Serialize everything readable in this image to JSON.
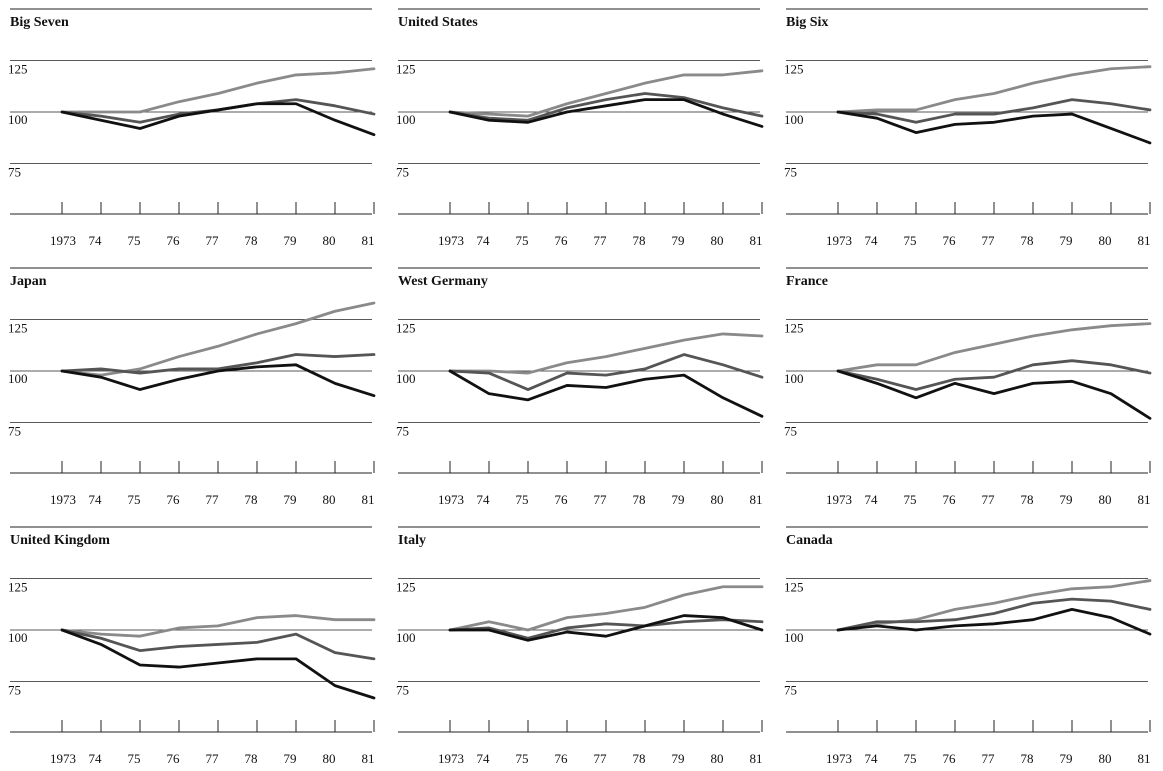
{
  "chart_data": [
    {
      "type": "line",
      "title": "Big Seven",
      "x": [
        "1973",
        "74",
        "75",
        "76",
        "77",
        "78",
        "79",
        "80",
        "81"
      ],
      "y_ticks": [
        "125",
        "100",
        "75"
      ],
      "ylim": [
        50,
        150
      ],
      "series": [
        {
          "color": "#8a8a8a",
          "values": [
            100,
            100,
            100,
            105,
            109,
            114,
            118,
            119,
            121
          ]
        },
        {
          "color": "#555555",
          "values": [
            100,
            98,
            95,
            99,
            101,
            104,
            106,
            103,
            99
          ]
        },
        {
          "color": "#111111",
          "values": [
            100,
            96,
            92,
            98,
            101,
            104,
            104,
            96,
            89
          ]
        }
      ]
    },
    {
      "type": "line",
      "title": "United States",
      "x": [
        "1973",
        "74",
        "75",
        "76",
        "77",
        "78",
        "79",
        "80",
        "81"
      ],
      "y_ticks": [
        "125",
        "100",
        "75"
      ],
      "ylim": [
        50,
        150
      ],
      "series": [
        {
          "color": "#8a8a8a",
          "values": [
            100,
            99,
            98,
            104,
            109,
            114,
            118,
            118,
            120
          ]
        },
        {
          "color": "#555555",
          "values": [
            100,
            97,
            96,
            102,
            106,
            109,
            107,
            102,
            98
          ]
        },
        {
          "color": "#111111",
          "values": [
            100,
            96,
            95,
            100,
            103,
            106,
            106,
            99,
            93
          ]
        }
      ]
    },
    {
      "type": "line",
      "title": "Big Six",
      "x": [
        "1973",
        "74",
        "75",
        "76",
        "77",
        "78",
        "79",
        "80",
        "81"
      ],
      "y_ticks": [
        "125",
        "100",
        "75"
      ],
      "ylim": [
        50,
        150
      ],
      "series": [
        {
          "color": "#8a8a8a",
          "values": [
            100,
            101,
            101,
            106,
            109,
            114,
            118,
            121,
            122
          ]
        },
        {
          "color": "#555555",
          "values": [
            100,
            99,
            95,
            99,
            99,
            102,
            106,
            104,
            101
          ]
        },
        {
          "color": "#111111",
          "values": [
            100,
            97,
            90,
            94,
            95,
            98,
            99,
            92,
            85
          ]
        }
      ]
    },
    {
      "type": "line",
      "title": "Japan",
      "x": [
        "1973",
        "74",
        "75",
        "76",
        "77",
        "78",
        "79",
        "80",
        "81"
      ],
      "y_ticks": [
        "125",
        "100",
        "75"
      ],
      "ylim": [
        50,
        150
      ],
      "series": [
        {
          "color": "#8a8a8a",
          "values": [
            100,
            98,
            101,
            107,
            112,
            118,
            123,
            129,
            133
          ]
        },
        {
          "color": "#555555",
          "values": [
            100,
            101,
            99,
            101,
            101,
            104,
            108,
            107,
            108
          ]
        },
        {
          "color": "#111111",
          "values": [
            100,
            97,
            91,
            96,
            100,
            102,
            103,
            94,
            88
          ]
        }
      ]
    },
    {
      "type": "line",
      "title": "West Germany",
      "x": [
        "1973",
        "74",
        "75",
        "76",
        "77",
        "78",
        "79",
        "80",
        "81"
      ],
      "y_ticks": [
        "125",
        "100",
        "75"
      ],
      "ylim": [
        50,
        150
      ],
      "series": [
        {
          "color": "#8a8a8a",
          "values": [
            100,
            100,
            99,
            104,
            107,
            111,
            115,
            118,
            117
          ]
        },
        {
          "color": "#555555",
          "values": [
            100,
            99,
            91,
            99,
            98,
            101,
            108,
            103,
            97
          ]
        },
        {
          "color": "#111111",
          "values": [
            100,
            89,
            86,
            93,
            92,
            96,
            98,
            87,
            78
          ]
        }
      ]
    },
    {
      "type": "line",
      "title": "France",
      "x": [
        "1973",
        "74",
        "75",
        "76",
        "77",
        "78",
        "79",
        "80",
        "81"
      ],
      "y_ticks": [
        "125",
        "100",
        "75"
      ],
      "ylim": [
        50,
        150
      ],
      "series": [
        {
          "color": "#8a8a8a",
          "values": [
            100,
            103,
            103,
            109,
            113,
            117,
            120,
            122,
            123
          ]
        },
        {
          "color": "#555555",
          "values": [
            100,
            96,
            91,
            96,
            97,
            103,
            105,
            103,
            99
          ]
        },
        {
          "color": "#111111",
          "values": [
            100,
            94,
            87,
            94,
            89,
            94,
            95,
            89,
            77
          ]
        }
      ]
    },
    {
      "type": "line",
      "title": "United Kingdom",
      "x": [
        "1973",
        "74",
        "75",
        "76",
        "77",
        "78",
        "79",
        "80",
        "81"
      ],
      "y_ticks": [
        "125",
        "100",
        "75"
      ],
      "ylim": [
        50,
        150
      ],
      "series": [
        {
          "color": "#8a8a8a",
          "values": [
            100,
            98,
            97,
            101,
            102,
            106,
            107,
            105,
            105
          ]
        },
        {
          "color": "#555555",
          "values": [
            100,
            96,
            90,
            92,
            93,
            94,
            98,
            89,
            86
          ]
        },
        {
          "color": "#111111",
          "values": [
            100,
            93,
            83,
            82,
            84,
            86,
            86,
            73,
            67
          ]
        }
      ]
    },
    {
      "type": "line",
      "title": "Italy",
      "x": [
        "1973",
        "74",
        "75",
        "76",
        "77",
        "78",
        "79",
        "80",
        "81"
      ],
      "y_ticks": [
        "125",
        "100",
        "75"
      ],
      "ylim": [
        50,
        150
      ],
      "series": [
        {
          "color": "#8a8a8a",
          "values": [
            100,
            104,
            100,
            106,
            108,
            111,
            117,
            121,
            121
          ]
        },
        {
          "color": "#555555",
          "values": [
            100,
            101,
            96,
            101,
            103,
            102,
            104,
            105,
            104
          ]
        },
        {
          "color": "#111111",
          "values": [
            100,
            100,
            95,
            99,
            97,
            102,
            107,
            106,
            100
          ]
        }
      ]
    },
    {
      "type": "line",
      "title": "Canada",
      "x": [
        "1973",
        "74",
        "75",
        "76",
        "77",
        "78",
        "79",
        "80",
        "81"
      ],
      "y_ticks": [
        "125",
        "100",
        "75"
      ],
      "ylim": [
        50,
        150
      ],
      "series": [
        {
          "color": "#8a8a8a",
          "values": [
            100,
            103,
            105,
            110,
            113,
            117,
            120,
            121,
            124
          ]
        },
        {
          "color": "#555555",
          "values": [
            100,
            104,
            104,
            105,
            108,
            113,
            115,
            114,
            110
          ]
        },
        {
          "color": "#111111",
          "values": [
            100,
            102,
            100,
            102,
            103,
            105,
            110,
            106,
            98
          ]
        }
      ]
    }
  ]
}
